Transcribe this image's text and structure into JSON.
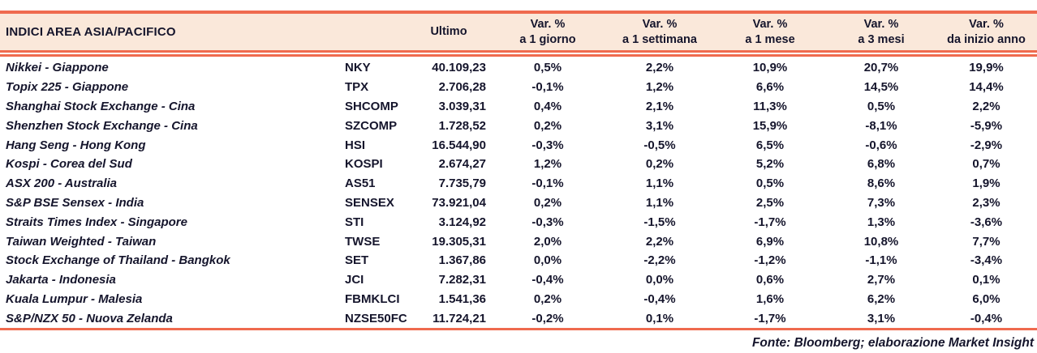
{
  "table": {
    "title": "INDICI AREA ASIA/PACIFICO",
    "ultimo_label": "Ultimo",
    "var_columns": [
      {
        "l1": "Var. %",
        "l2": "a 1 giorno"
      },
      {
        "l1": "Var. %",
        "l2": "a 1 settimana"
      },
      {
        "l1": "Var. %",
        "l2": "a 1 mese"
      },
      {
        "l1": "Var. %",
        "l2": "a 3 mesi"
      },
      {
        "l1": "Var. %",
        "l2": "da inizio anno"
      }
    ],
    "rows": [
      {
        "name": "Nikkei - Giappone",
        "ticker": "NKY",
        "ultimo": "40.109,23",
        "v1d": "0,5%",
        "v1w": "2,2%",
        "v1m": "10,9%",
        "v3m": "20,7%",
        "ytd": "19,9%"
      },
      {
        "name": "Topix 225 - Giappone",
        "ticker": "TPX",
        "ultimo": "2.706,28",
        "v1d": "-0,1%",
        "v1w": "1,2%",
        "v1m": "6,6%",
        "v3m": "14,5%",
        "ytd": "14,4%"
      },
      {
        "name": "Shanghai Stock Exchange - Cina",
        "ticker": "SHCOMP",
        "ultimo": "3.039,31",
        "v1d": "0,4%",
        "v1w": "2,1%",
        "v1m": "11,3%",
        "v3m": "0,5%",
        "ytd": "2,2%"
      },
      {
        "name": "Shenzhen Stock Exchange - Cina",
        "ticker": "SZCOMP",
        "ultimo": "1.728,52",
        "v1d": "0,2%",
        "v1w": "3,1%",
        "v1m": "15,9%",
        "v3m": "-8,1%",
        "ytd": "-5,9%"
      },
      {
        "name": "Hang Seng - Hong Kong",
        "ticker": "HSI",
        "ultimo": "16.544,90",
        "v1d": "-0,3%",
        "v1w": "-0,5%",
        "v1m": "6,5%",
        "v3m": "-0,6%",
        "ytd": "-2,9%"
      },
      {
        "name": "Kospi - Corea del Sud",
        "ticker": "KOSPI",
        "ultimo": "2.674,27",
        "v1d": "1,2%",
        "v1w": "0,2%",
        "v1m": "5,2%",
        "v3m": "6,8%",
        "ytd": "0,7%"
      },
      {
        "name": "ASX 200 - Australia",
        "ticker": "AS51",
        "ultimo": "7.735,79",
        "v1d": "-0,1%",
        "v1w": "1,1%",
        "v1m": "0,5%",
        "v3m": "8,6%",
        "ytd": "1,9%"
      },
      {
        "name": "S&P BSE Sensex - India",
        "ticker": "SENSEX",
        "ultimo": "73.921,04",
        "v1d": "0,2%",
        "v1w": "1,1%",
        "v1m": "2,5%",
        "v3m": "7,3%",
        "ytd": "2,3%"
      },
      {
        "name": "Straits Times Index - Singapore",
        "ticker": "STI",
        "ultimo": "3.124,92",
        "v1d": "-0,3%",
        "v1w": "-1,5%",
        "v1m": "-1,7%",
        "v3m": "1,3%",
        "ytd": "-3,6%"
      },
      {
        "name": "Taiwan Weighted - Taiwan",
        "ticker": "TWSE",
        "ultimo": "19.305,31",
        "v1d": "2,0%",
        "v1w": "2,2%",
        "v1m": "6,9%",
        "v3m": "10,8%",
        "ytd": "7,7%"
      },
      {
        "name": "Stock Exchange of Thailand - Bangkok",
        "ticker": "SET",
        "ultimo": "1.367,86",
        "v1d": "0,0%",
        "v1w": "-2,2%",
        "v1m": "-1,2%",
        "v3m": "-1,1%",
        "ytd": "-3,4%"
      },
      {
        "name": "Jakarta - Indonesia",
        "ticker": "JCI",
        "ultimo": "7.282,31",
        "v1d": "-0,4%",
        "v1w": "0,0%",
        "v1m": "0,6%",
        "v3m": "2,7%",
        "ytd": "0,1%"
      },
      {
        "name": "Kuala Lumpur - Malesia",
        "ticker": "FBMKLCI",
        "ultimo": "1.541,36",
        "v1d": "0,2%",
        "v1w": "-0,4%",
        "v1m": "1,6%",
        "v3m": "6,2%",
        "ytd": "6,0%"
      },
      {
        "name": "S&P/NZX 50 - Nuova Zelanda",
        "ticker": "NZSE50FC",
        "ultimo": "11.724,21",
        "v1d": "-0,2%",
        "v1w": "0,1%",
        "v1m": "-1,7%",
        "v3m": "3,1%",
        "ytd": "-0,4%"
      }
    ],
    "footer": "Fonte: Bloomberg; elaborazione Market Insight"
  },
  "colors": {
    "accent_orange": "#ef6a4e",
    "header_bg": "#fae8da",
    "text": "#15152c",
    "page_bg": "#ffffff"
  }
}
